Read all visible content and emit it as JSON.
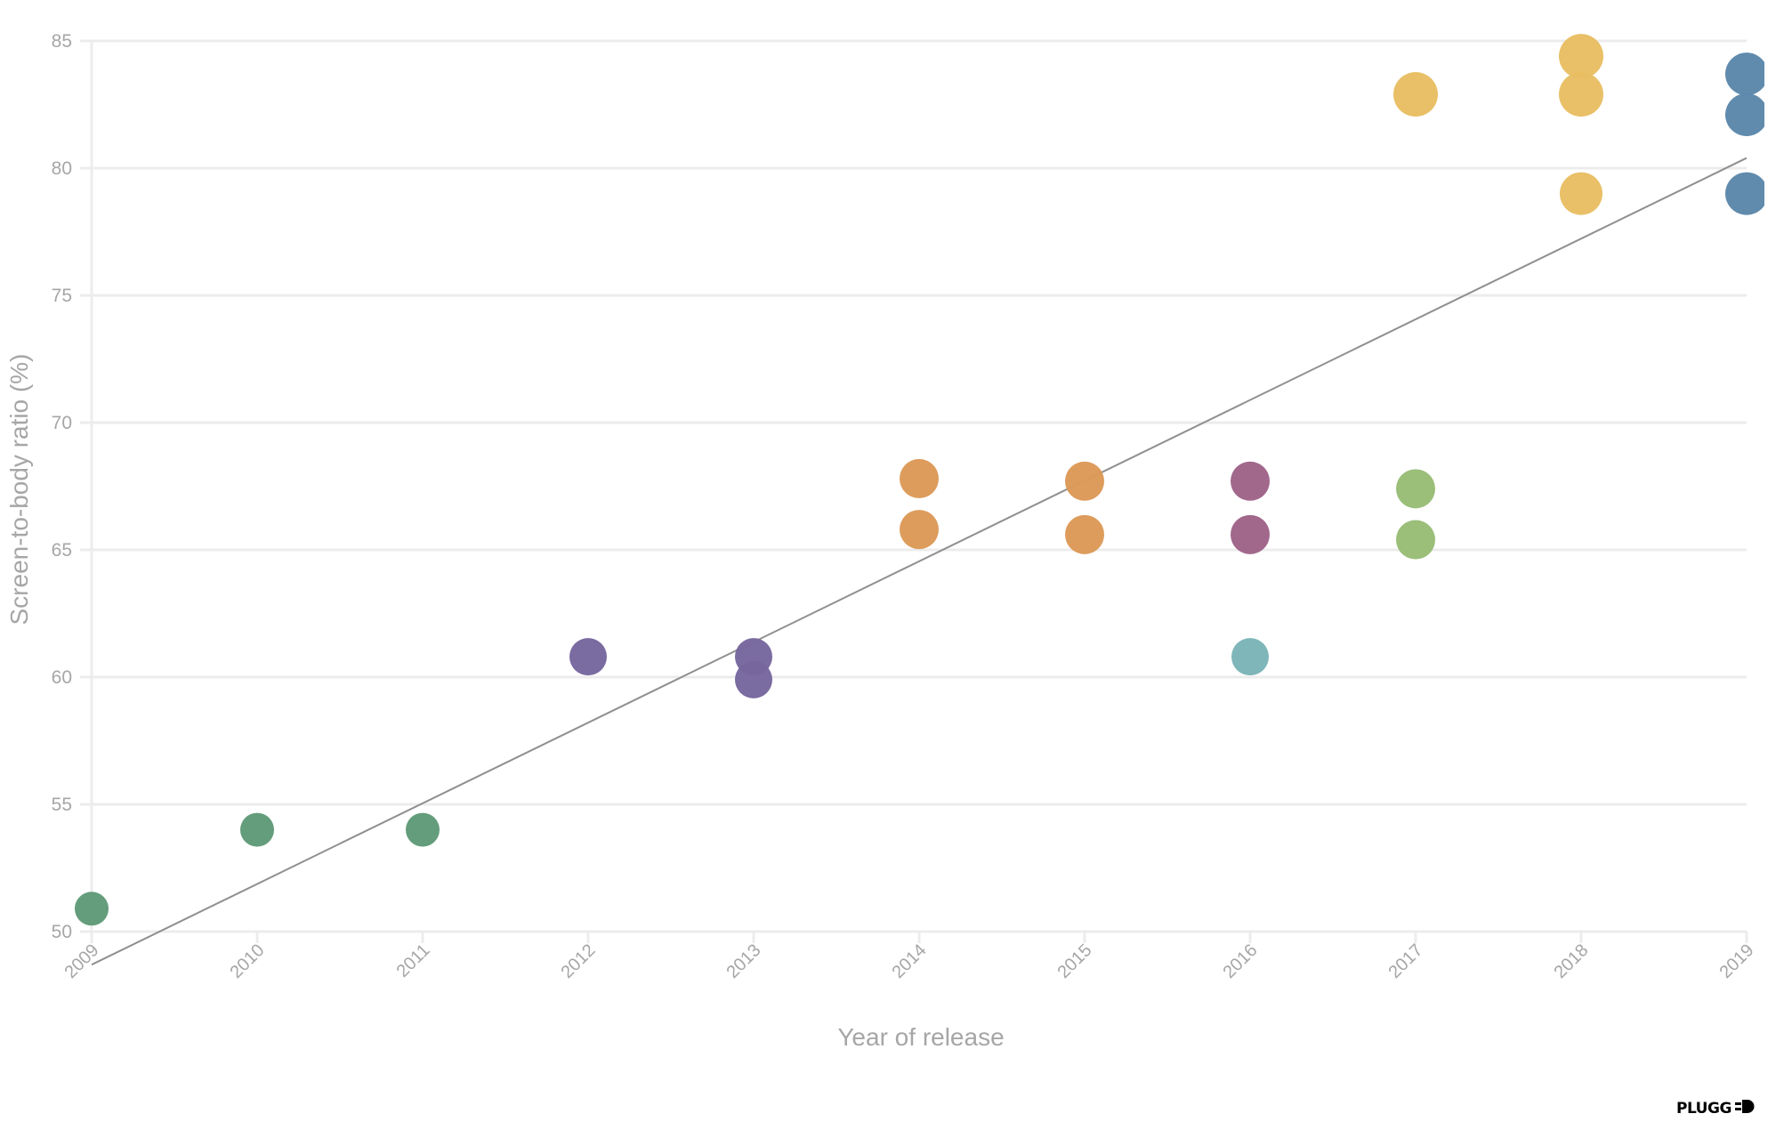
{
  "chart_data": {
    "type": "scatter",
    "title": "",
    "xlabel": "Year of release",
    "ylabel": "Screen-to-body ratio (%)",
    "xlim": [
      2009,
      2019
    ],
    "ylim": [
      50,
      85
    ],
    "x_ticks": [
      "2009",
      "2010",
      "2011",
      "2012",
      "2013",
      "2014",
      "2015",
      "2016",
      "2017",
      "2018",
      "2019"
    ],
    "y_ticks": [
      "50",
      "55",
      "60",
      "65",
      "70",
      "75",
      "80",
      "85"
    ],
    "grid": "horizontal",
    "legend": "none",
    "points": [
      {
        "x": 2009,
        "y": 50.9,
        "color": "#5f9a77",
        "r": 19
      },
      {
        "x": 2010,
        "y": 54.0,
        "color": "#5f9a77",
        "r": 19
      },
      {
        "x": 2011,
        "y": 54.0,
        "color": "#5f9a77",
        "r": 19
      },
      {
        "x": 2012,
        "y": 60.8,
        "color": "#76669d",
        "r": 21
      },
      {
        "x": 2013,
        "y": 60.8,
        "color": "#76669d",
        "r": 21
      },
      {
        "x": 2013,
        "y": 59.9,
        "color": "#76669d",
        "r": 21
      },
      {
        "x": 2014,
        "y": 67.8,
        "color": "#dc9957",
        "r": 22
      },
      {
        "x": 2014,
        "y": 65.8,
        "color": "#dc9957",
        "r": 22
      },
      {
        "x": 2015,
        "y": 67.7,
        "color": "#dc9957",
        "r": 22
      },
      {
        "x": 2015,
        "y": 65.6,
        "color": "#dc9957",
        "r": 22
      },
      {
        "x": 2016,
        "y": 67.7,
        "color": "#9e6388",
        "r": 22
      },
      {
        "x": 2016,
        "y": 65.6,
        "color": "#9e6388",
        "r": 22
      },
      {
        "x": 2016,
        "y": 60.8,
        "color": "#7ab4b7",
        "r": 21
      },
      {
        "x": 2017,
        "y": 67.4,
        "color": "#98bc75",
        "r": 22
      },
      {
        "x": 2017,
        "y": 65.4,
        "color": "#98bc75",
        "r": 22
      },
      {
        "x": 2017,
        "y": 82.9,
        "color": "#e8be62",
        "r": 25
      },
      {
        "x": 2018,
        "y": 84.4,
        "color": "#e8be62",
        "r": 25
      },
      {
        "x": 2018,
        "y": 82.9,
        "color": "#e8be62",
        "r": 25
      },
      {
        "x": 2018,
        "y": 79.0,
        "color": "#e8be62",
        "r": 24
      },
      {
        "x": 2019,
        "y": 83.7,
        "color": "#5b87aa",
        "r": 24
      },
      {
        "x": 2019,
        "y": 82.1,
        "color": "#5b87aa",
        "r": 24
      },
      {
        "x": 2019,
        "y": 79.0,
        "color": "#5b87aa",
        "r": 24
      }
    ],
    "trendline": {
      "x": [
        2009,
        2019
      ],
      "y": [
        48.7,
        80.4
      ],
      "color": "#8f8f8f"
    }
  },
  "branding": {
    "logo_text": "PLUGG",
    "logo_icon": "plug-icon"
  }
}
